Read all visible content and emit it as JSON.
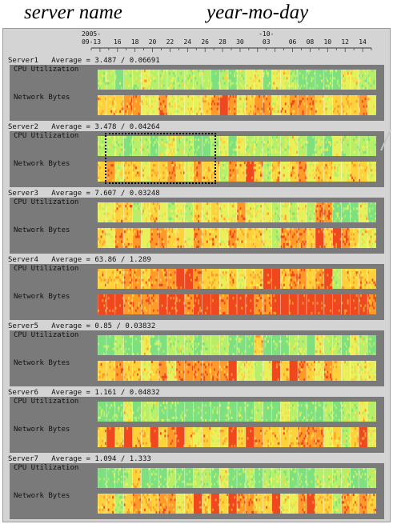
{
  "header": {
    "server_label": "server name",
    "date_label": "year-mo-day"
  },
  "timeline": {
    "tick_labels": [
      {
        "top": "2005-",
        "bottom": "09-13",
        "day": 13
      },
      {
        "top": "",
        "bottom": "16",
        "day": 16
      },
      {
        "top": "",
        "bottom": "18",
        "day": 18
      },
      {
        "top": "",
        "bottom": "20",
        "day": 20
      },
      {
        "top": "",
        "bottom": "22",
        "day": 22
      },
      {
        "top": "",
        "bottom": "24",
        "day": 24
      },
      {
        "top": "",
        "bottom": "26",
        "day": 26
      },
      {
        "top": "",
        "bottom": "28",
        "day": 28
      },
      {
        "top": "",
        "bottom": "30",
        "day": 30
      },
      {
        "top": "-10-",
        "bottom": "03",
        "day": 33
      },
      {
        "top": "",
        "bottom": "06",
        "day": 36
      },
      {
        "top": "",
        "bottom": "08",
        "day": 38
      },
      {
        "top": "",
        "bottom": "10",
        "day": 40
      },
      {
        "top": "",
        "bottom": "12",
        "day": 42
      },
      {
        "top": "",
        "bottom": "14",
        "day": 44
      }
    ],
    "day_range": [
      13,
      45
    ]
  },
  "servers": [
    {
      "name": "Server1",
      "average_text": "Average = 3.487 / 0.06691",
      "cpu_label": "CPU Utilization",
      "net_label": "Network Bytes",
      "cpu_level": "low",
      "net_level": "med"
    },
    {
      "name": "Server2",
      "average_text": "Average = 3.478 / 0.04264",
      "cpu_label": "CPU Utilization",
      "net_label": "Network Bytes",
      "cpu_level": "low",
      "net_level": "med"
    },
    {
      "name": "Server3",
      "average_text": "Average = 7.607 / 0.03248",
      "cpu_label": "CPU Utilization",
      "net_label": "Network Bytes",
      "cpu_level": "midlow",
      "net_level": "med"
    },
    {
      "name": "Server4",
      "average_text": "Average = 63.86 / 1.289",
      "cpu_label": "CPU Utilization",
      "net_label": "Network Bytes",
      "cpu_level": "high",
      "net_level": "veryhigh"
    },
    {
      "name": "Server5",
      "average_text": "Average = 0.85 / 0.03832",
      "cpu_label": "CPU Utilization",
      "net_label": "Network Bytes",
      "cpu_level": "verylow",
      "net_level": "medlow"
    },
    {
      "name": "Server6",
      "average_text": "Average = 1.161 / 0.04832",
      "cpu_label": "CPU Utilization",
      "net_label": "Network Bytes",
      "cpu_level": "verylow",
      "net_level": "med"
    },
    {
      "name": "Server7",
      "average_text": "Average = 1.094 / 1.333",
      "cpu_label": "CPU Utilization",
      "net_label": "Network Bytes",
      "cpu_level": "verylow",
      "net_level": "medhigh"
    }
  ],
  "colors": {
    "panel_bg": "#d4d4d4",
    "row_bg": "#7a7a7a",
    "scale": [
      "#7ee07e",
      "#b6f06a",
      "#e9f05a",
      "#ffd23c",
      "#ff9a28",
      "#f0481e"
    ]
  }
}
